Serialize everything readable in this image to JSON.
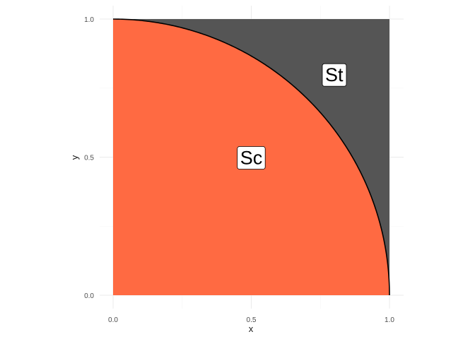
{
  "chart_data": {
    "type": "area",
    "title": "",
    "xlabel": "x",
    "ylabel": "y",
    "xlim": [
      0,
      1
    ],
    "ylim": [
      0,
      1
    ],
    "x_ticks": [
      0.0,
      0.5,
      1.0
    ],
    "x_tick_labels": [
      "0.0",
      "0.5",
      "1.0"
    ],
    "y_ticks": [
      0.0,
      0.5,
      1.0
    ],
    "y_tick_labels": [
      "0.0",
      "0.5",
      "1.0"
    ],
    "grid": true,
    "regions": [
      {
        "label": "St",
        "description": "unit square minus quarter circle",
        "fill": "#555555"
      },
      {
        "label": "Sc",
        "description": "quarter circle x^2 + y^2 <= 1",
        "fill": "#FF6A42"
      }
    ],
    "curve": {
      "equation": "y = sqrt(1 - x^2)",
      "points": [
        [
          0.0,
          1.0
        ],
        [
          0.1,
          0.995
        ],
        [
          0.2,
          0.98
        ],
        [
          0.3,
          0.954
        ],
        [
          0.4,
          0.917
        ],
        [
          0.5,
          0.866
        ],
        [
          0.6,
          0.8
        ],
        [
          0.7,
          0.714
        ],
        [
          0.8,
          0.6
        ],
        [
          0.9,
          0.436
        ],
        [
          0.95,
          0.312
        ],
        [
          0.98,
          0.199
        ],
        [
          1.0,
          0.0
        ]
      ],
      "color": "#000000"
    },
    "annotations": [
      {
        "text": "Sc",
        "x": 0.5,
        "y": 0.5
      },
      {
        "text": "St",
        "x": 0.8,
        "y": 0.8
      }
    ]
  }
}
